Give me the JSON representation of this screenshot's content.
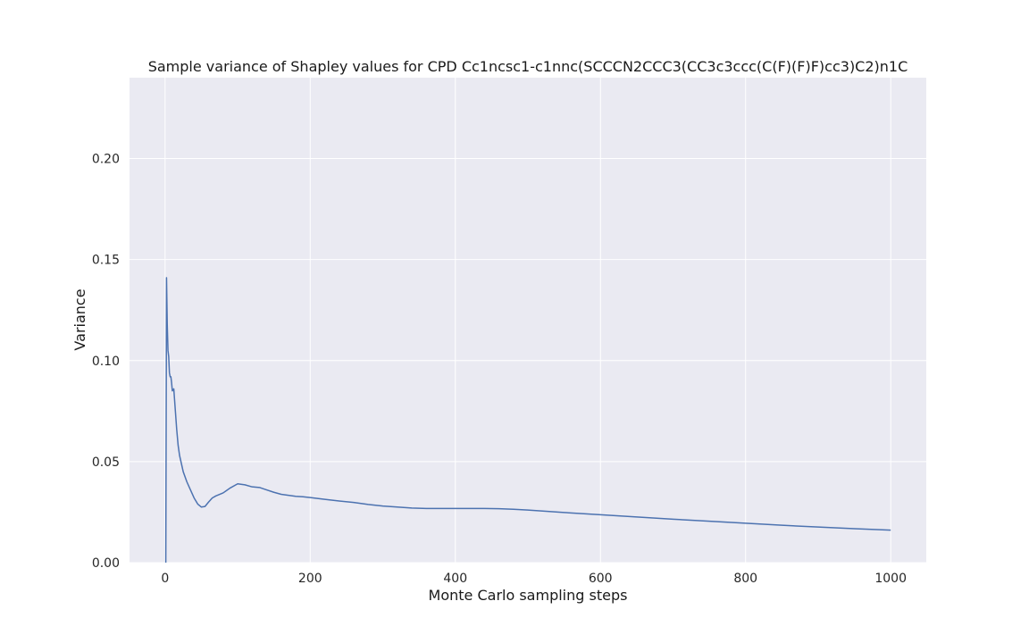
{
  "chart_data": {
    "type": "line",
    "title": "Sample variance of Shapley values for CPD Cc1ncsc1-c1nnc(SCCCN2CCC3(CC3c3ccc(C(F)(F)F)cc3)C2)n1C",
    "xlabel": "Monte Carlo sampling steps",
    "ylabel": "Variance",
    "xlim": [
      -49,
      1049
    ],
    "ylim": [
      0,
      0.24
    ],
    "xticks": [
      0,
      200,
      400,
      600,
      800,
      1000
    ],
    "xtick_labels": [
      "0",
      "200",
      "400",
      "600",
      "800",
      "1000"
    ],
    "yticks": [
      0,
      0.05,
      0.1,
      0.15,
      0.2
    ],
    "ytick_labels": [
      "0.00",
      "0.05",
      "0.10",
      "0.15",
      "0.20"
    ],
    "grid": true,
    "background": "#eaeaf2",
    "grid_color": "#ffffff",
    "line_color": "#4c72b0",
    "series": [
      {
        "x": [
          1,
          2,
          3,
          4,
          5,
          6,
          7,
          8,
          9,
          10,
          12,
          14,
          16,
          18,
          20,
          25,
          30,
          35,
          40,
          45,
          50,
          55,
          60,
          65,
          70,
          80,
          90,
          100,
          110,
          120,
          130,
          140,
          150,
          160,
          170,
          180,
          190,
          200,
          220,
          240,
          260,
          280,
          300,
          320,
          340,
          360,
          380,
          400,
          420,
          440,
          460,
          480,
          500,
          550,
          600,
          650,
          700,
          750,
          800,
          850,
          900,
          950,
          1000
        ],
        "y": [
          0.0,
          0.141,
          0.118,
          0.105,
          0.102,
          0.094,
          0.092,
          0.092,
          0.089,
          0.085,
          0.086,
          0.076,
          0.066,
          0.058,
          0.053,
          0.045,
          0.04,
          0.036,
          0.032,
          0.029,
          0.0275,
          0.0278,
          0.03,
          0.032,
          0.033,
          0.0345,
          0.037,
          0.039,
          0.0385,
          0.0375,
          0.0372,
          0.036,
          0.0348,
          0.0338,
          0.0333,
          0.0328,
          0.0326,
          0.0322,
          0.0313,
          0.0305,
          0.0298,
          0.0288,
          0.028,
          0.0275,
          0.027,
          0.0268,
          0.0268,
          0.0268,
          0.0268,
          0.0268,
          0.0267,
          0.0264,
          0.026,
          0.0248,
          0.0237,
          0.0226,
          0.0215,
          0.0205,
          0.0195,
          0.0185,
          0.0176,
          0.0168,
          0.0161
        ]
      }
    ]
  }
}
